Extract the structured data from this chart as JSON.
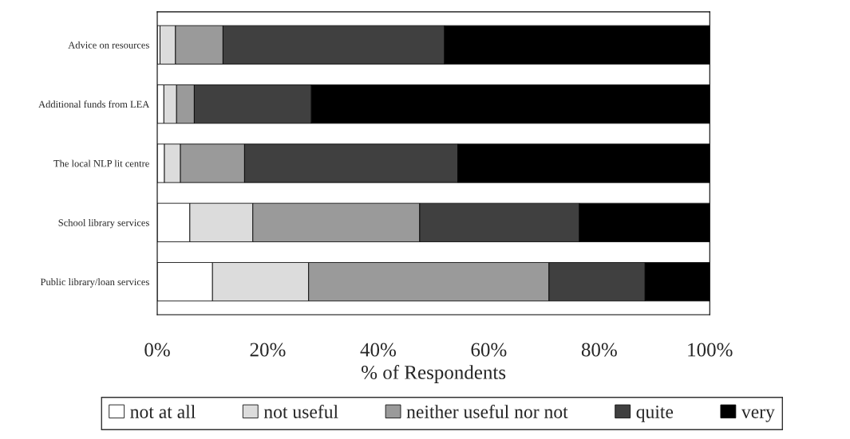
{
  "chart_data": {
    "type": "bar",
    "orientation": "horizontal",
    "stacked": true,
    "xlabel": "% of Respondents",
    "categories": [
      "Advice on resources",
      "Additional funds from LEA",
      "The local NLP lit centre",
      "School library services",
      "Public library/loan services"
    ],
    "series": [
      {
        "name": "not at all",
        "color": "#ffffff",
        "values": [
          0.5,
          1.2,
          1.3,
          5.9,
          10.0
        ]
      },
      {
        "name": "not useful",
        "color": "#dcdcdc",
        "values": [
          2.8,
          2.3,
          2.9,
          11.4,
          17.4
        ]
      },
      {
        "name": "neither useful nor not",
        "color": "#9a9a9a",
        "values": [
          8.6,
          3.2,
          11.6,
          30.2,
          43.5
        ]
      },
      {
        "name": "quite",
        "color": "#404040",
        "values": [
          40.1,
          21.2,
          38.6,
          28.9,
          17.4
        ]
      },
      {
        "name": "very",
        "color": "#000000",
        "values": [
          48.0,
          72.1,
          45.6,
          23.6,
          11.7
        ]
      }
    ],
    "xlim": [
      0,
      100
    ],
    "xticks": [
      {
        "value": 0,
        "label": "0%"
      },
      {
        "value": 20,
        "label": "20%"
      },
      {
        "value": 40,
        "label": "40%"
      },
      {
        "value": 60,
        "label": "60%"
      },
      {
        "value": 80,
        "label": "80%"
      },
      {
        "value": 100,
        "label": "100%"
      }
    ],
    "grid": false,
    "legend": "bottom"
  }
}
